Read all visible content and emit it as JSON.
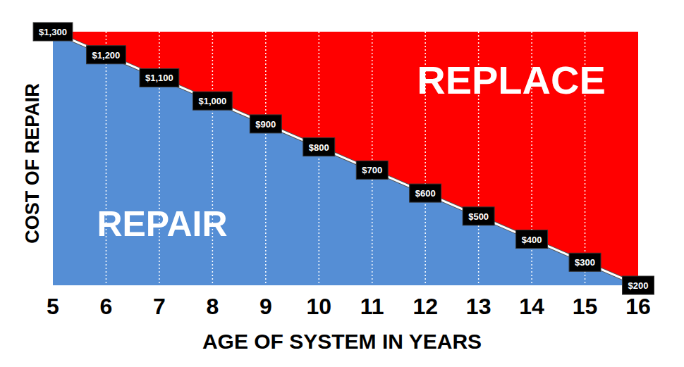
{
  "chart_data": {
    "type": "area",
    "x_label": "AGE OF SYSTEM IN YEARS",
    "y_label": "COST OF REPAIR",
    "x": [
      5,
      6,
      7,
      8,
      9,
      10,
      11,
      12,
      13,
      14,
      15,
      16
    ],
    "values": [
      1300,
      1200,
      1100,
      1000,
      900,
      800,
      700,
      600,
      500,
      400,
      300,
      200
    ],
    "value_labels": [
      "$1,300",
      "$1,200",
      "$1,100",
      "$1,000",
      "$900",
      "$800",
      "$700",
      "$600",
      "$500",
      "$400",
      "$300",
      "$200"
    ],
    "color": "#558ed5",
    "xlim": [
      5,
      16
    ],
    "ylim": [
      200,
      1300
    ],
    "xticks": [
      5,
      6,
      7,
      8,
      9,
      10,
      11,
      12,
      13,
      14,
      15,
      16
    ],
    "grid": true,
    "data_labels": true,
    "tick_labels": "x",
    "annotations": [
      "REPAIR",
      "REPLACE"
    ]
  }
}
